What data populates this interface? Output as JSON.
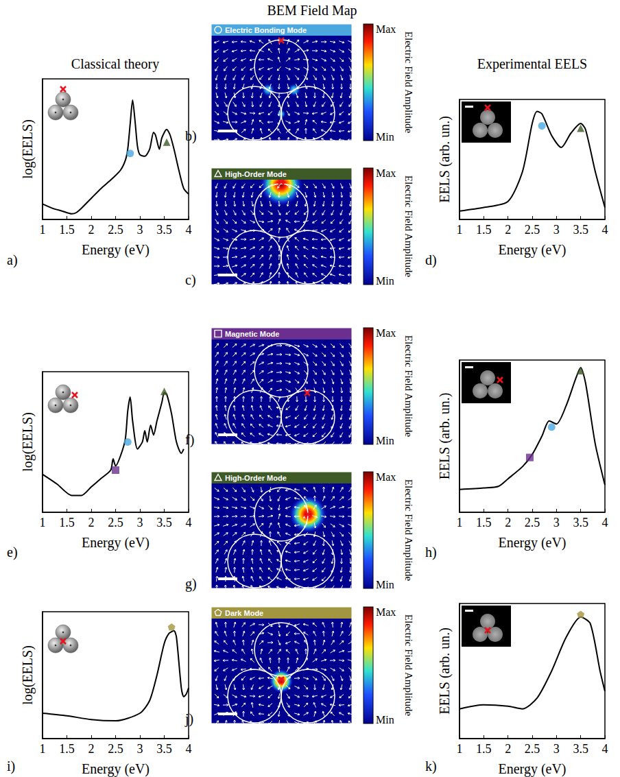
{
  "column_titles": [
    "Classical theory",
    "BEM Field Map",
    "Experimental EELS"
  ],
  "chart_data": [
    {
      "panel": "a)",
      "type": "line",
      "x_label": "Energy (eV)",
      "y_label": "log(EELS)",
      "xlim": [
        1,
        4
      ],
      "xticks": [
        1,
        1.5,
        2,
        2.5,
        3,
        3.5,
        4
      ],
      "ylim": [
        0,
        1
      ],
      "tick_labels": "x",
      "grid": false,
      "series": [
        {
          "type": "line",
          "color": "#000000",
          "x": [
            1.0,
            1.2,
            1.4,
            1.6,
            1.7,
            1.8,
            2.0,
            2.2,
            2.4,
            2.6,
            2.7,
            2.75,
            2.8,
            2.85,
            2.9,
            2.95,
            3.0,
            3.1,
            3.2,
            3.28,
            3.32,
            3.4,
            3.45,
            3.55,
            3.62,
            3.7,
            3.8,
            3.9,
            4.0
          ],
          "values": [
            0.11,
            0.08,
            0.06,
            0.04,
            0.05,
            0.08,
            0.15,
            0.22,
            0.28,
            0.35,
            0.42,
            0.5,
            0.68,
            0.85,
            0.7,
            0.52,
            0.46,
            0.45,
            0.5,
            0.62,
            0.6,
            0.5,
            0.58,
            0.64,
            0.6,
            0.5,
            0.35,
            0.22,
            0.18
          ]
        },
        {
          "type": "scatter",
          "marker": "circle",
          "color": "#4aa8df",
          "x": [
            2.8
          ],
          "values": [
            0.47
          ]
        },
        {
          "type": "scatter",
          "marker": "triangle",
          "color": "#3e5a27",
          "x": [
            3.55
          ],
          "values": [
            0.55
          ]
        }
      ]
    },
    {
      "panel": "b)",
      "type": "field_map",
      "title": "Electric Bonding Mode",
      "marker": "circle",
      "color": "#4aa8df",
      "colorbar_title": "Electric Field Amplitude",
      "colorbar_labels": [
        "Max",
        "Min"
      ]
    },
    {
      "panel": "c)",
      "type": "field_map",
      "title": "High-Order Mode",
      "marker": "triangle",
      "color": "#3e5a27",
      "colorbar_title": "Electric Field Amplitude",
      "colorbar_labels": [
        "Max",
        "Min"
      ]
    },
    {
      "panel": "d)",
      "type": "line",
      "x_label": "Energy (eV)",
      "y_label": "EELS (arb. un.)",
      "xlim": [
        1,
        4
      ],
      "xticks": [
        1,
        1.5,
        2,
        2.5,
        3,
        3.5,
        4
      ],
      "ylim": [
        0,
        1
      ],
      "tick_labels": "x",
      "grid": false,
      "series": [
        {
          "type": "line",
          "color": "#000000",
          "x": [
            1.0,
            1.5,
            2.0,
            2.3,
            2.5,
            2.6,
            2.7,
            2.9,
            3.1,
            3.3,
            3.5,
            3.6,
            3.8,
            4.0
          ],
          "values": [
            0.07,
            0.1,
            0.15,
            0.4,
            0.8,
            0.9,
            0.88,
            0.7,
            0.6,
            0.72,
            0.8,
            0.75,
            0.4,
            0.1
          ]
        },
        {
          "type": "scatter",
          "marker": "circle",
          "color": "#4aa8df",
          "x": [
            2.7
          ],
          "values": [
            0.78
          ]
        },
        {
          "type": "scatter",
          "marker": "triangle",
          "color": "#3e5a27",
          "x": [
            3.5
          ],
          "values": [
            0.76
          ]
        }
      ]
    },
    {
      "panel": "e)",
      "type": "line",
      "x_label": "Energy (eV)",
      "y_label": "log(EELS)",
      "xlim": [
        1,
        4
      ],
      "xticks": [
        1,
        1.5,
        2,
        2.5,
        3,
        3.5,
        4
      ],
      "ylim": [
        0,
        1
      ],
      "tick_labels": "x",
      "grid": false,
      "series": [
        {
          "type": "line",
          "color": "#000000",
          "x": [
            1.0,
            1.3,
            1.6,
            1.8,
            2.0,
            2.2,
            2.4,
            2.45,
            2.5,
            2.6,
            2.7,
            2.75,
            2.8,
            2.85,
            2.95,
            3.05,
            3.1,
            3.15,
            3.22,
            3.28,
            3.35,
            3.45,
            3.5,
            3.55,
            3.65,
            3.75,
            3.85,
            3.9
          ],
          "values": [
            0.27,
            0.2,
            0.12,
            0.12,
            0.18,
            0.24,
            0.3,
            0.38,
            0.33,
            0.4,
            0.52,
            0.72,
            0.82,
            0.65,
            0.45,
            0.5,
            0.58,
            0.5,
            0.62,
            0.55,
            0.65,
            0.78,
            0.85,
            0.84,
            0.7,
            0.5,
            0.42,
            0.45
          ]
        },
        {
          "type": "scatter",
          "marker": "square",
          "color": "#6b2f8f",
          "x": [
            2.5
          ],
          "values": [
            0.3
          ]
        },
        {
          "type": "scatter",
          "marker": "circle",
          "color": "#4aa8df",
          "x": [
            2.75
          ],
          "values": [
            0.5
          ]
        },
        {
          "type": "scatter",
          "marker": "triangle",
          "color": "#3e5a27",
          "x": [
            3.5
          ],
          "values": [
            0.86
          ]
        }
      ]
    },
    {
      "panel": "f)",
      "type": "field_map",
      "title": "Magnetic Mode",
      "marker": "square",
      "color": "#6b2f8f",
      "colorbar_title": "Electric Field Amplitude",
      "colorbar_labels": [
        "Max",
        "Min"
      ]
    },
    {
      "panel": "g)",
      "type": "field_map",
      "title": "High-Order Mode",
      "marker": "triangle",
      "color": "#3e5a27",
      "colorbar_title": "Electric Field Amplitude",
      "colorbar_labels": [
        "Max",
        "Min"
      ]
    },
    {
      "panel": "h)",
      "type": "line",
      "x_label": "Energy (eV)",
      "y_label": "EELS (arb. un.)",
      "xlim": [
        1,
        4
      ],
      "xticks": [
        1,
        1.5,
        2,
        2.5,
        3,
        3.5,
        4
      ],
      "ylim": [
        0,
        1
      ],
      "tick_labels": "x",
      "grid": false,
      "series": [
        {
          "type": "line",
          "color": "#000000",
          "x": [
            1.0,
            1.5,
            1.8,
            2.0,
            2.3,
            2.5,
            2.7,
            2.85,
            3.0,
            3.2,
            3.4,
            3.5,
            3.6,
            3.8,
            4.0
          ],
          "values": [
            0.15,
            0.16,
            0.17,
            0.22,
            0.3,
            0.38,
            0.5,
            0.6,
            0.58,
            0.7,
            0.88,
            0.95,
            0.85,
            0.45,
            0.18
          ]
        },
        {
          "type": "scatter",
          "marker": "square",
          "color": "#6b2f8f",
          "x": [
            2.45
          ],
          "values": [
            0.36
          ]
        },
        {
          "type": "scatter",
          "marker": "circle",
          "color": "#4aa8df",
          "x": [
            2.9
          ],
          "values": [
            0.56
          ]
        },
        {
          "type": "scatter",
          "marker": "triangle",
          "color": "#3e5a27",
          "x": [
            3.5
          ],
          "values": [
            0.93
          ]
        }
      ]
    },
    {
      "panel": "i)",
      "type": "line",
      "x_label": "Energy (eV)",
      "y_label": "log(EELS)",
      "xlim": [
        1,
        4
      ],
      "xticks": [
        1,
        1.5,
        2,
        2.5,
        3,
        3.5,
        4
      ],
      "ylim": [
        0,
        1
      ],
      "tick_labels": "x",
      "grid": false,
      "series": [
        {
          "type": "line",
          "color": "#000000",
          "x": [
            1.0,
            1.5,
            2.0,
            2.5,
            3.0,
            3.2,
            3.35,
            3.5,
            3.6,
            3.7,
            3.75,
            3.85,
            3.9,
            3.95,
            4.0
          ],
          "values": [
            0.2,
            0.18,
            0.15,
            0.14,
            0.2,
            0.3,
            0.5,
            0.75,
            0.83,
            0.85,
            0.8,
            0.4,
            0.33,
            0.35,
            0.4
          ]
        },
        {
          "type": "scatter",
          "marker": "pentagon",
          "color": "#a29640",
          "x": [
            3.65
          ],
          "values": [
            0.88
          ]
        }
      ]
    },
    {
      "panel": "j)",
      "type": "field_map",
      "title": "Dark Mode",
      "marker": "pentagon",
      "color": "#a29640",
      "colorbar_title": "Electric Field Amplitude",
      "colorbar_labels": [
        "Max",
        "Min"
      ]
    },
    {
      "panel": "k)",
      "type": "line",
      "x_label": "Energy (eV)",
      "y_label": "EELS (arb. un.)",
      "xlim": [
        1,
        4
      ],
      "xticks": [
        1,
        1.5,
        2,
        2.5,
        3,
        3.5,
        4
      ],
      "ylim": [
        0,
        1
      ],
      "tick_labels": "x",
      "grid": false,
      "series": [
        {
          "type": "line",
          "color": "#000000",
          "x": [
            1.0,
            1.5,
            2.0,
            2.3,
            2.6,
            2.9,
            3.2,
            3.5,
            3.7,
            3.9,
            4.0
          ],
          "values": [
            0.22,
            0.25,
            0.24,
            0.22,
            0.3,
            0.5,
            0.75,
            0.9,
            0.85,
            0.5,
            0.35
          ]
        },
        {
          "type": "scatter",
          "marker": "pentagon",
          "color": "#a29640",
          "x": [
            3.5
          ],
          "values": [
            0.92
          ]
        }
      ]
    }
  ]
}
